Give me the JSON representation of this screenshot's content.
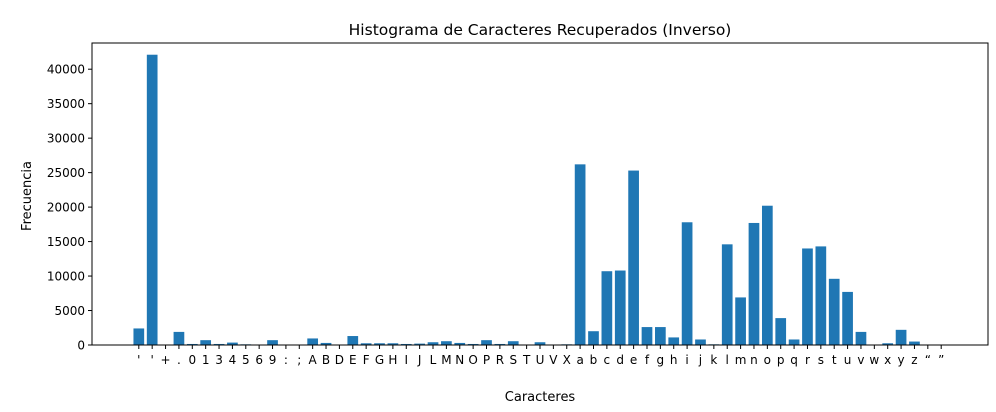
{
  "chart_data": {
    "type": "bar",
    "title": "Histograma de Caracteres Recuperados (Inverso)",
    "xlabel": "Caracteres",
    "ylabel": "Frecuencia",
    "ylim": [
      0,
      43800
    ],
    "yticks": [
      0,
      5000,
      10000,
      15000,
      20000,
      25000,
      30000,
      35000,
      40000
    ],
    "grid": false,
    "color": "#1f77b4",
    "categories": [
      "'",
      "'",
      "+",
      ".",
      "0",
      "1",
      "3",
      "4",
      "5",
      "6",
      "9",
      ":",
      ";",
      "A",
      "B",
      "D",
      "E",
      "F",
      "G",
      "H",
      "I",
      "J",
      "L",
      "M",
      "N",
      "O",
      "P",
      "R",
      "S",
      "T",
      "U",
      "V",
      "X",
      "a",
      "b",
      "c",
      "d",
      "e",
      "f",
      "g",
      "h",
      "i",
      "j",
      "k",
      "l",
      "m",
      "n",
      "o",
      "p",
      "q",
      "r",
      "s",
      "t",
      "u",
      "v",
      "w",
      "x",
      "y",
      "z",
      "“",
      "”"
    ],
    "values": [
      2400,
      42100,
      20,
      1900,
      150,
      700,
      150,
      350,
      100,
      50,
      700,
      20,
      10,
      950,
      300,
      10,
      1300,
      250,
      250,
      250,
      150,
      200,
      400,
      550,
      300,
      150,
      700,
      150,
      550,
      10,
      400,
      10,
      100,
      26200,
      2000,
      10700,
      10800,
      25300,
      2600,
      2600,
      1100,
      17800,
      800,
      100,
      14600,
      6900,
      17700,
      20200,
      3900,
      800,
      14000,
      14300,
      9600,
      7700,
      1900,
      50,
      250,
      2200,
      500,
      20,
      20
    ]
  }
}
